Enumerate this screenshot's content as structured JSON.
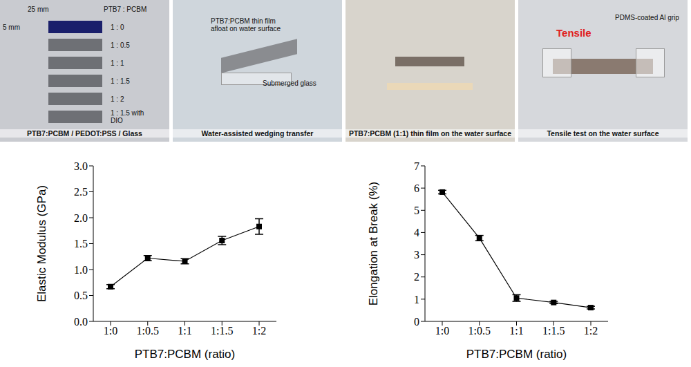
{
  "photos": [
    {
      "caption": "PTB7:PCBM / PEDOT:PSS / Glass",
      "labels": [
        "25 mm",
        "PTB7 : PCBM",
        "5 mm",
        "1 : 0",
        "1 : 0.5",
        "1 : 1",
        "1 : 1.5",
        "1 : 2",
        "1 : 1.5 with DIO"
      ]
    },
    {
      "caption": "Water-assisted wedging transfer",
      "labels": [
        "PTB7:PCBM thin film afloat on water surface",
        "Submerged glass"
      ]
    },
    {
      "caption": "PTB7:PCBM (1:1) thin film on the water surface",
      "labels": []
    },
    {
      "caption": "Tensile test on the water surface",
      "labels": [
        "PDMS-coated Al grip",
        "Tensile"
      ]
    }
  ],
  "chart_data": [
    {
      "type": "line",
      "x_label": "PTB7:PCBM (ratio)",
      "y_label": "Elastic Modulus (GPa)",
      "categories": [
        "1:0",
        "1:0.5",
        "1:1",
        "1:1.5",
        "1:2"
      ],
      "values": [
        0.67,
        1.22,
        1.16,
        1.56,
        1.83
      ],
      "errors": [
        0.04,
        0.05,
        0.05,
        0.08,
        0.15
      ],
      "color": "#000000",
      "marker": "square",
      "ylim": [
        0,
        3
      ],
      "yticks": [
        {
          "value": 0,
          "label": "0.0"
        },
        {
          "value": 0.5,
          "label": "0.5"
        },
        {
          "value": 1,
          "label": "1.0"
        },
        {
          "value": 1.5,
          "label": "1.5"
        },
        {
          "value": 2,
          "label": "2.0"
        },
        {
          "value": 2.5,
          "label": "2.5"
        },
        {
          "value": 3,
          "label": "3.0"
        }
      ]
    },
    {
      "type": "line",
      "x_label": "PTB7:PCBM (ratio)",
      "y_label": "Elongation at Break (%)",
      "categories": [
        "1:0",
        "1:0.5",
        "1:1",
        "1:1.5",
        "1:2"
      ],
      "values": [
        5.82,
        3.75,
        1.05,
        0.85,
        0.62
      ],
      "errors": [
        0.08,
        0.12,
        0.15,
        0.05,
        0.06
      ],
      "color": "#000000",
      "marker": "square",
      "ylim": [
        0,
        7
      ],
      "yticks": [
        0,
        1,
        2,
        3,
        4,
        5,
        6,
        7
      ]
    }
  ]
}
